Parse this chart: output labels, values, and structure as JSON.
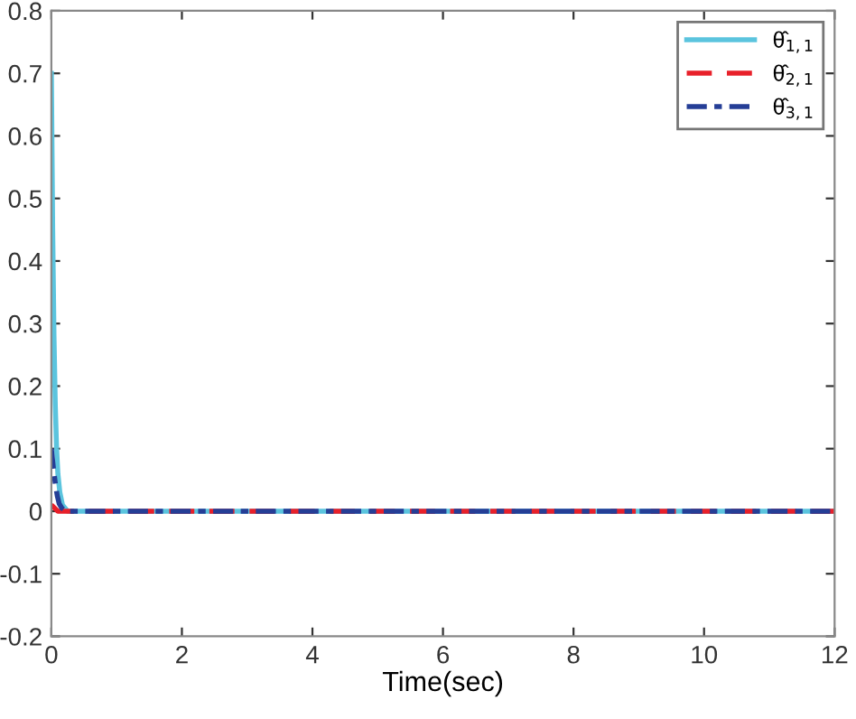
{
  "chart_data": {
    "type": "line",
    "xlabel": "Time(sec)",
    "xlim": [
      0,
      12
    ],
    "xticks": [
      0,
      2,
      4,
      6,
      8,
      10,
      12
    ],
    "ylim": [
      -0.2,
      0.8
    ],
    "yticks": [
      -0.2,
      -0.1,
      0,
      0.1,
      0.2,
      0.3,
      0.4,
      0.5,
      0.6,
      0.7,
      0.8
    ],
    "legend": "top right",
    "grid": false,
    "series": [
      {
        "name": "θ̂$_{1,1}$",
        "color": "#5bc4de",
        "line_style": "solid",
        "x": [
          0,
          0.02,
          0.04,
          0.06,
          0.08,
          0.1,
          0.13,
          0.17,
          0.25,
          0.5,
          1,
          12
        ],
        "values": [
          0.7,
          0.45,
          0.28,
          0.17,
          0.1,
          0.06,
          0.03,
          0.01,
          0,
          0,
          0,
          0
        ]
      },
      {
        "name": "θ̂$_{2,1}$",
        "color": "#e8202a",
        "line_style": "dashed",
        "x": [
          0,
          0.05,
          0.1,
          0.2,
          1,
          12
        ],
        "values": [
          0.01,
          0.005,
          0,
          0,
          0,
          0
        ]
      },
      {
        "name": "θ̂$_{3,1}$",
        "color": "#253e96",
        "line_style": "dashdot",
        "x": [
          0,
          0.03,
          0.06,
          0.09,
          0.12,
          0.16,
          0.22,
          0.5,
          1,
          12
        ],
        "values": [
          0.1,
          0.07,
          0.045,
          0.025,
          0.012,
          0.005,
          0,
          0,
          0,
          0
        ]
      }
    ]
  }
}
